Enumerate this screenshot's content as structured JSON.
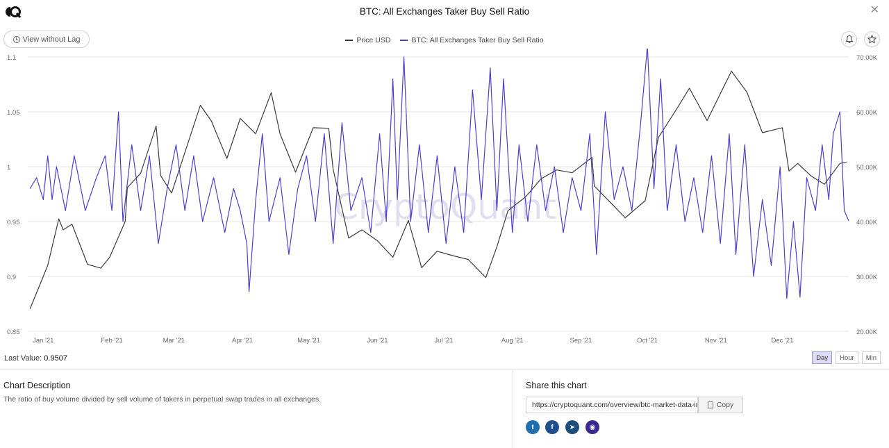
{
  "header": {
    "title": "BTC: All Exchanges Taker Buy Sell Ratio",
    "close_label": "✕"
  },
  "toolbar": {
    "lag_button_label": "View without Lag",
    "alert_icon": "bell-icon",
    "favorite_icon": "star-icon"
  },
  "colors": {
    "price_line": "#3a3a3a",
    "ratio_line": "#4b3fcf",
    "grid": "#e6e6e6",
    "axis_text": "#666666",
    "watermark": "#dcd9ec",
    "active_range": "#dcdcf5"
  },
  "watermark": "CryptoQuant",
  "chart_data": {
    "type": "line",
    "title": "BTC: All Exchanges Taker Buy Sell Ratio",
    "series": [
      {
        "name": "Price USD",
        "axis": "right",
        "points": [
          [
            "2020-12-26",
            24100
          ],
          [
            "2020-12-31",
            29000
          ],
          [
            "2021-01-03",
            32000
          ],
          [
            "2021-01-08",
            40500
          ],
          [
            "2021-01-10",
            38500
          ],
          [
            "2021-01-14",
            39500
          ],
          [
            "2021-01-21",
            32200
          ],
          [
            "2021-01-27",
            31500
          ],
          [
            "2021-01-31",
            33500
          ],
          [
            "2021-02-07",
            40000
          ],
          [
            "2021-02-08",
            46200
          ],
          [
            "2021-02-14",
            48800
          ],
          [
            "2021-02-21",
            57400
          ],
          [
            "2021-02-23",
            48400
          ],
          [
            "2021-02-28",
            45200
          ],
          [
            "2021-03-13",
            61200
          ],
          [
            "2021-03-18",
            58300
          ],
          [
            "2021-03-25",
            51500
          ],
          [
            "2021-03-31",
            58800
          ],
          [
            "2021-04-07",
            56000
          ],
          [
            "2021-04-14",
            63500
          ],
          [
            "2021-04-18",
            56000
          ],
          [
            "2021-04-25",
            49000
          ],
          [
            "2021-05-03",
            57100
          ],
          [
            "2021-05-10",
            57000
          ],
          [
            "2021-05-12",
            49500
          ],
          [
            "2021-05-19",
            37000
          ],
          [
            "2021-05-25",
            38500
          ],
          [
            "2021-06-01",
            36500
          ],
          [
            "2021-06-08",
            33500
          ],
          [
            "2021-06-15",
            40200
          ],
          [
            "2021-06-21",
            31600
          ],
          [
            "2021-06-28",
            34600
          ],
          [
            "2021-07-05",
            33800
          ],
          [
            "2021-07-12",
            33100
          ],
          [
            "2021-07-20",
            29800
          ],
          [
            "2021-07-25",
            35400
          ],
          [
            "2021-07-30",
            42000
          ],
          [
            "2021-08-07",
            44500
          ],
          [
            "2021-08-14",
            47800
          ],
          [
            "2021-08-21",
            49400
          ],
          [
            "2021-08-28",
            48900
          ],
          [
            "2021-09-06",
            51700
          ],
          [
            "2021-09-07",
            46500
          ],
          [
            "2021-09-21",
            40700
          ],
          [
            "2021-09-30",
            43800
          ],
          [
            "2021-10-06",
            55300
          ],
          [
            "2021-10-15",
            61000
          ],
          [
            "2021-10-20",
            64300
          ],
          [
            "2021-10-28",
            58400
          ],
          [
            "2021-11-08",
            67400
          ],
          [
            "2021-11-15",
            63600
          ],
          [
            "2021-11-22",
            56200
          ],
          [
            "2021-12-01",
            57100
          ],
          [
            "2021-12-04",
            49200
          ],
          [
            "2021-12-08",
            50600
          ],
          [
            "2021-12-14",
            48300
          ],
          [
            "2021-12-20",
            46800
          ],
          [
            "2021-12-27",
            50600
          ],
          [
            "2021-12-30",
            50800
          ]
        ]
      },
      {
        "name": "BTC: All Exchanges Taker Buy Sell Ratio",
        "axis": "left",
        "points": [
          [
            "2020-12-26",
            0.98
          ],
          [
            "2020-12-29",
            0.99
          ],
          [
            "2021-01-01",
            0.97
          ],
          [
            "2021-01-03",
            1.01
          ],
          [
            "2021-01-05",
            0.97
          ],
          [
            "2021-01-07",
            1.0
          ],
          [
            "2021-01-11",
            0.96
          ],
          [
            "2021-01-15",
            1.01
          ],
          [
            "2021-01-20",
            0.96
          ],
          [
            "2021-01-25",
            0.99
          ],
          [
            "2021-01-29",
            1.01
          ],
          [
            "2021-02-01",
            0.96
          ],
          [
            "2021-02-04",
            1.05
          ],
          [
            "2021-02-06",
            0.95
          ],
          [
            "2021-02-10",
            1.02
          ],
          [
            "2021-02-14",
            0.96
          ],
          [
            "2021-02-18",
            1.01
          ],
          [
            "2021-02-22",
            0.93
          ],
          [
            "2021-02-26",
            0.98
          ],
          [
            "2021-03-02",
            1.02
          ],
          [
            "2021-03-06",
            0.96
          ],
          [
            "2021-03-10",
            1.01
          ],
          [
            "2021-03-14",
            0.95
          ],
          [
            "2021-03-19",
            0.99
          ],
          [
            "2021-03-24",
            0.94
          ],
          [
            "2021-03-28",
            0.98
          ],
          [
            "2021-03-31",
            0.96
          ],
          [
            "2021-04-03",
            0.93
          ],
          [
            "2021-04-04",
            0.886
          ],
          [
            "2021-04-07",
            0.97
          ],
          [
            "2021-04-10",
            1.03
          ],
          [
            "2021-04-13",
            0.95
          ],
          [
            "2021-04-18",
            0.99
          ],
          [
            "2021-04-22",
            0.92
          ],
          [
            "2021-04-26",
            0.98
          ],
          [
            "2021-04-30",
            1.01
          ],
          [
            "2021-05-04",
            0.95
          ],
          [
            "2021-05-08",
            1.03
          ],
          [
            "2021-05-12",
            0.93
          ],
          [
            "2021-05-16",
            1.04
          ],
          [
            "2021-05-20",
            0.96
          ],
          [
            "2021-05-25",
            0.99
          ],
          [
            "2021-05-29",
            0.94
          ],
          [
            "2021-06-02",
            1.03
          ],
          [
            "2021-06-05",
            0.95
          ],
          [
            "2021-06-08",
            1.08
          ],
          [
            "2021-06-10",
            0.97
          ],
          [
            "2021-06-13",
            1.1
          ],
          [
            "2021-06-16",
            0.95
          ],
          [
            "2021-06-20",
            1.02
          ],
          [
            "2021-06-24",
            0.94
          ],
          [
            "2021-06-28",
            1.01
          ],
          [
            "2021-07-02",
            0.93
          ],
          [
            "2021-07-06",
            1.0
          ],
          [
            "2021-07-10",
            0.94
          ],
          [
            "2021-07-14",
            1.07
          ],
          [
            "2021-07-18",
            0.97
          ],
          [
            "2021-07-22",
            1.09
          ],
          [
            "2021-07-25",
            0.96
          ],
          [
            "2021-07-28",
            1.08
          ],
          [
            "2021-08-01",
            0.94
          ],
          [
            "2021-08-04",
            1.02
          ],
          [
            "2021-08-08",
            0.95
          ],
          [
            "2021-08-12",
            1.02
          ],
          [
            "2021-08-16",
            0.96
          ],
          [
            "2021-08-20",
            1.0
          ],
          [
            "2021-08-24",
            0.94
          ],
          [
            "2021-08-28",
            0.99
          ],
          [
            "2021-09-01",
            0.96
          ],
          [
            "2021-09-05",
            1.03
          ],
          [
            "2021-09-08",
            0.92
          ],
          [
            "2021-09-12",
            1.05
          ],
          [
            "2021-09-16",
            0.97
          ],
          [
            "2021-09-20",
            1.0
          ],
          [
            "2021-09-24",
            0.96
          ],
          [
            "2021-09-28",
            1.04
          ],
          [
            "2021-10-01",
            1.11
          ],
          [
            "2021-10-04",
            0.98
          ],
          [
            "2021-10-07",
            1.08
          ],
          [
            "2021-10-10",
            0.96
          ],
          [
            "2021-10-14",
            1.02
          ],
          [
            "2021-10-18",
            0.95
          ],
          [
            "2021-10-22",
            0.99
          ],
          [
            "2021-10-26",
            0.94
          ],
          [
            "2021-10-30",
            1.01
          ],
          [
            "2021-11-03",
            0.93
          ],
          [
            "2021-11-07",
            1.03
          ],
          [
            "2021-11-10",
            0.92
          ],
          [
            "2021-11-14",
            1.02
          ],
          [
            "2021-11-18",
            0.9
          ],
          [
            "2021-11-22",
            0.97
          ],
          [
            "2021-11-26",
            0.91
          ],
          [
            "2021-11-30",
            1.0
          ],
          [
            "2021-12-03",
            0.88
          ],
          [
            "2021-12-06",
            0.95
          ],
          [
            "2021-12-09",
            0.881
          ],
          [
            "2021-12-12",
            0.99
          ],
          [
            "2021-12-16",
            0.96
          ],
          [
            "2021-12-19",
            1.02
          ],
          [
            "2021-12-22",
            0.97
          ],
          [
            "2021-12-24",
            1.03
          ],
          [
            "2021-12-27",
            1.05
          ],
          [
            "2021-12-29",
            0.96
          ],
          [
            "2021-12-31",
            0.9507
          ]
        ]
      }
    ],
    "x_ticks": [
      "Jan '21",
      "Feb '21",
      "Mar '21",
      "Apr '21",
      "May '21",
      "Jun '21",
      "Jul '21",
      "Aug '21",
      "Sep '21",
      "Oct '21",
      "Nov '21",
      "Dec '21"
    ],
    "x_tick_dates": [
      "2021-01-01",
      "2021-02-01",
      "2021-03-01",
      "2021-04-01",
      "2021-05-01",
      "2021-06-01",
      "2021-07-01",
      "2021-08-01",
      "2021-09-01",
      "2021-10-01",
      "2021-11-01",
      "2021-12-01"
    ],
    "xlim": [
      "2020-12-25",
      "2021-12-31"
    ],
    "left_axis": {
      "ticks": [
        1.1,
        1.05,
        1,
        0.95,
        0.9,
        0.85
      ],
      "tick_labels": [
        "1.1",
        "1.05",
        "1",
        "0.95",
        "0.9",
        "0.85"
      ],
      "ylim": [
        0.85,
        1.1
      ]
    },
    "right_axis": {
      "ticks": [
        70000,
        60000,
        50000,
        40000,
        30000,
        20000
      ],
      "tick_labels": [
        "70.00K",
        "60.00K",
        "50.00K",
        "40.00K",
        "30.00K",
        "20.00K"
      ],
      "ylim": [
        20000,
        70000
      ]
    },
    "grid": true,
    "legend_position": "top-center"
  },
  "footer": {
    "last_value_label": "Last Value:",
    "last_value": "0.9507",
    "range_buttons": [
      "Day",
      "Hour",
      "Min"
    ],
    "active_range": "Day"
  },
  "description": {
    "title": "Chart Description",
    "text": "The ratio of buy volume divided by sell volume of takers in perpetual swap trades in all exchanges."
  },
  "share": {
    "title": "Share this chart",
    "url": "https://cryptoquant.com/overview/btc-market-data-indicators",
    "copy_label": "Copy",
    "socials": [
      {
        "icon": "twitter-icon",
        "glyph": "t",
        "color": "#1d6fae"
      },
      {
        "icon": "facebook-icon",
        "glyph": "f",
        "color": "#1d4f8e"
      },
      {
        "icon": "telegram-icon",
        "glyph": "➤",
        "color": "#1d4f7e"
      },
      {
        "icon": "camera-icon",
        "glyph": "◉",
        "color": "#3a2a8f"
      }
    ]
  }
}
